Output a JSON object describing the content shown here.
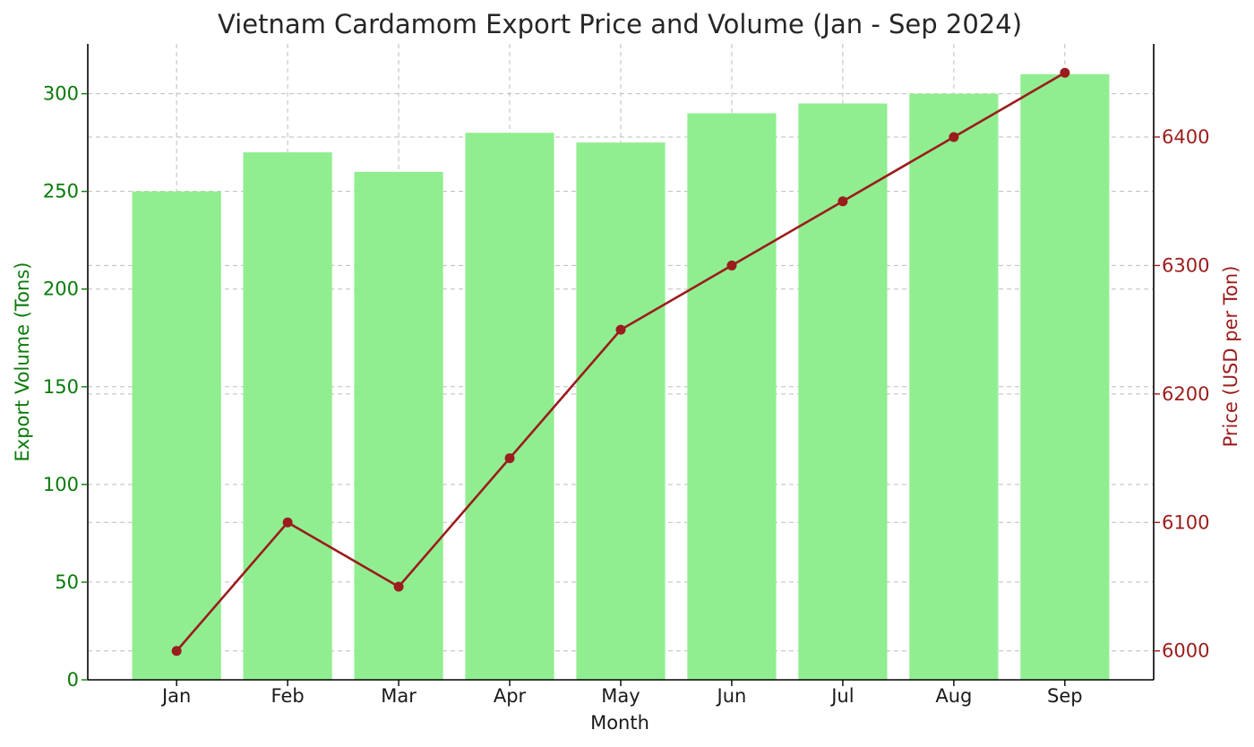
{
  "chart_data": {
    "type": "bar",
    "title": "Vietnam Cardamom Export Price and Volume (Jan - Sep 2024)",
    "xlabel": "Month",
    "ylabel_left": "Export Volume (Tons)",
    "ylabel_right": "Price (USD per Ton)",
    "categories": [
      "Jan",
      "Feb",
      "Mar",
      "Apr",
      "May",
      "Jun",
      "Jul",
      "Aug",
      "Sep"
    ],
    "series": [
      {
        "type": "bar",
        "axis": "left",
        "color": "#90ee90",
        "values": [
          250,
          270,
          260,
          280,
          275,
          290,
          295,
          300,
          310
        ]
      },
      {
        "type": "line",
        "axis": "right",
        "color": "#9b1c1c",
        "marker": "circle",
        "values": [
          6000,
          6100,
          6050,
          6150,
          6250,
          6300,
          6350,
          6400,
          6450
        ]
      }
    ],
    "ylim_left": [
      0,
      325.5
    ],
    "yticks_left": [
      0,
      50,
      100,
      150,
      200,
      250,
      300
    ],
    "ylim_right": [
      5977.5,
      6472.5
    ],
    "yticks_right": [
      6000,
      6100,
      6200,
      6300,
      6400
    ],
    "grid": true,
    "left_axis_color": "#0a7a0a",
    "right_axis_color": "#9b1c1c"
  }
}
